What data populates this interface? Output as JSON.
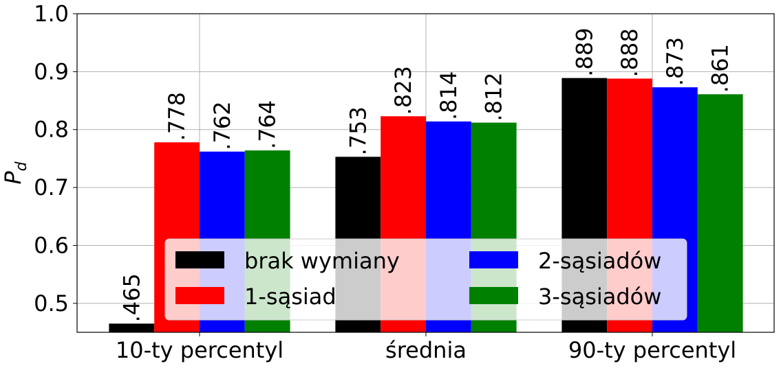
{
  "chart_data": {
    "type": "bar",
    "ylabel": {
      "text": "P",
      "subscript": "d"
    },
    "categories": [
      "10-ty percentyl",
      "średnia",
      "90-ty percentyl"
    ],
    "series": [
      {
        "name": "brak wymiany",
        "color": "#000000",
        "values": [
          0.465,
          0.753,
          0.889
        ],
        "value_labels": [
          ".465",
          ".753",
          ".889"
        ]
      },
      {
        "name": "1-sąsiad",
        "color": "#ff0000",
        "values": [
          0.778,
          0.823,
          0.888
        ],
        "value_labels": [
          ".778",
          ".823",
          ".888"
        ]
      },
      {
        "name": "2-sąsiadów",
        "color": "#0000ff",
        "values": [
          0.762,
          0.814,
          0.873
        ],
        "value_labels": [
          ".762",
          ".814",
          ".873"
        ]
      },
      {
        "name": "3-sąsiadów",
        "color": "#008000",
        "values": [
          0.764,
          0.812,
          0.861
        ],
        "value_labels": [
          ".764",
          ".812",
          ".861"
        ]
      }
    ],
    "ylim": [
      0.45,
      1.0
    ],
    "yticks": [
      {
        "value": 0.5,
        "label": "0.5"
      },
      {
        "value": 0.6,
        "label": "0.6"
      },
      {
        "value": 0.7,
        "label": "0.7"
      },
      {
        "value": 0.8,
        "label": "0.8"
      },
      {
        "value": 0.9,
        "label": "0.9"
      },
      {
        "value": 1.0,
        "label": "1.0"
      }
    ],
    "grid": true,
    "legend_position": "lower center"
  }
}
